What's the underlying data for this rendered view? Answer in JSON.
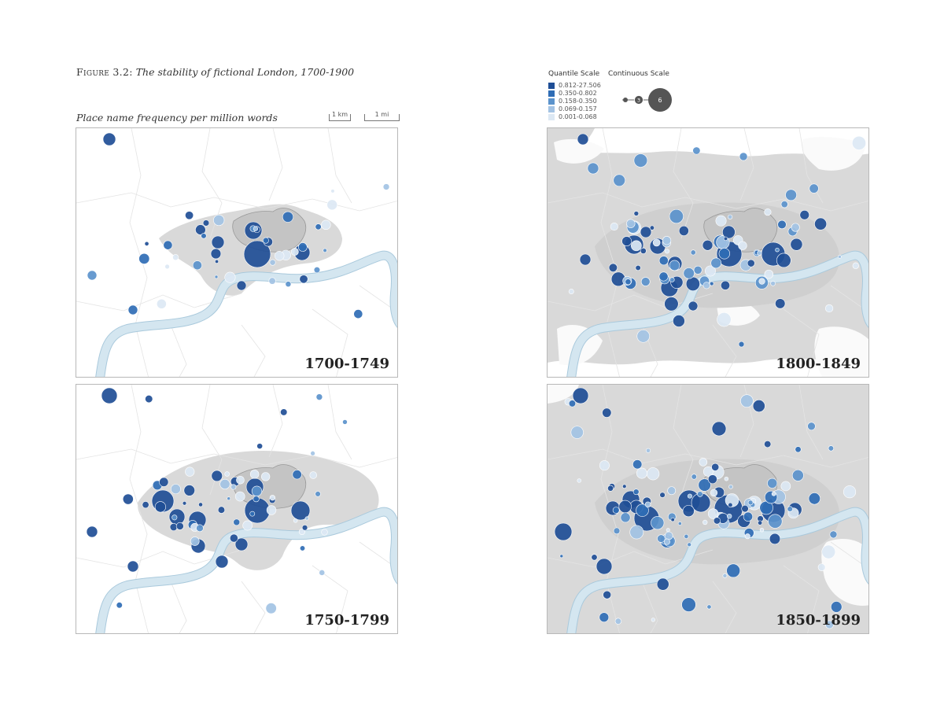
{
  "figure": {
    "label": "Figure 3.2:",
    "title": "The stability of fictional London, 1700-1900",
    "subtitle": "Place name frequency per million words"
  },
  "scale_bars": {
    "km": "1 km",
    "mi": "1 mi"
  },
  "legend": {
    "quantile_title": "Quantile Scale",
    "continuous_title": "Continuous Scale",
    "quantile_items": [
      {
        "label": "0.812-27.506",
        "color": "#1f4e96"
      },
      {
        "label": "0.350-0.802",
        "color": "#2f6db5"
      },
      {
        "label": "0.158-0.350",
        "color": "#5b93cc"
      },
      {
        "label": "0.069-0.157",
        "color": "#a3c3e4"
      },
      {
        "label": "0.001-0.068",
        "color": "#dce8f4"
      }
    ],
    "continuous_labels": [
      "3",
      "6"
    ]
  },
  "colors": {
    "river": "#d4e6f0",
    "river_edge": "#a9c9dc",
    "urban": "#d9d9d9",
    "core": "#c4c4c4",
    "borders": "#e4e4e4"
  },
  "maps": [
    {
      "period": "1700-1749",
      "urban_extent": "small"
    },
    {
      "period": "1750-1799",
      "urban_extent": "medium"
    },
    {
      "period": "1800-1849",
      "urban_extent": "large"
    },
    {
      "period": "1850-1899",
      "urban_extent": "full"
    }
  ]
}
